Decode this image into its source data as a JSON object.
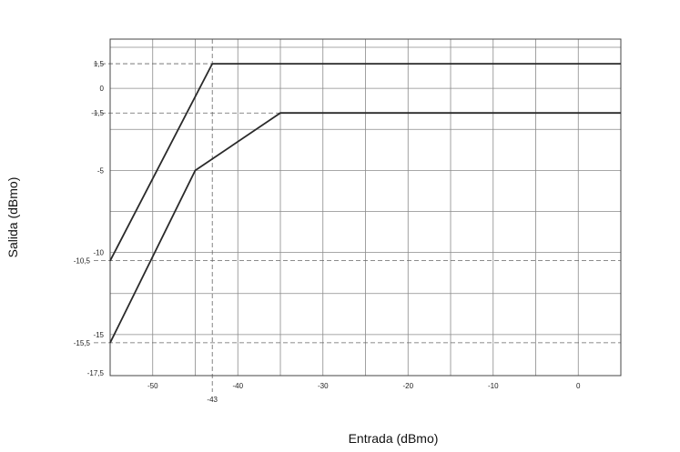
{
  "chart_data": {
    "type": "line",
    "title": "",
    "xlabel": "Entrada (dBmo)",
    "ylabel": "Salida (dBmo)",
    "xlim": [
      -55,
      5
    ],
    "ylim": [
      -17.5,
      3
    ],
    "grid": true,
    "xticks": [
      {
        "value": -50,
        "label": "-50"
      },
      {
        "value": -43,
        "label": "-43"
      },
      {
        "value": -40,
        "label": "-40"
      },
      {
        "value": -30,
        "label": "-30"
      },
      {
        "value": -20,
        "label": "-20"
      },
      {
        "value": -10,
        "label": "-10"
      },
      {
        "value": 0,
        "label": "0"
      }
    ],
    "yticks": [
      {
        "value": 1.5,
        "label": "1,5"
      },
      {
        "value": 0,
        "label": "0"
      },
      {
        "value": -1.5,
        "label": "-1,5"
      },
      {
        "value": -5,
        "label": "-5"
      },
      {
        "value": -10,
        "label": "-10"
      },
      {
        "value": -10.5,
        "label": "-10,5"
      },
      {
        "value": -15,
        "label": "-15"
      },
      {
        "value": -15.5,
        "label": "-15,5"
      },
      {
        "value": -17.5,
        "label": "-17,5"
      }
    ],
    "series": [
      {
        "points": [
          [
            -55,
            -10.5
          ],
          [
            -43,
            1.5
          ],
          [
            5,
            1.5
          ]
        ]
      },
      {
        "points": [
          [
            -55,
            -15.5
          ],
          [
            -45,
            -5
          ],
          [
            -35,
            -1.5
          ],
          [
            5,
            -1.5
          ]
        ]
      }
    ]
  }
}
